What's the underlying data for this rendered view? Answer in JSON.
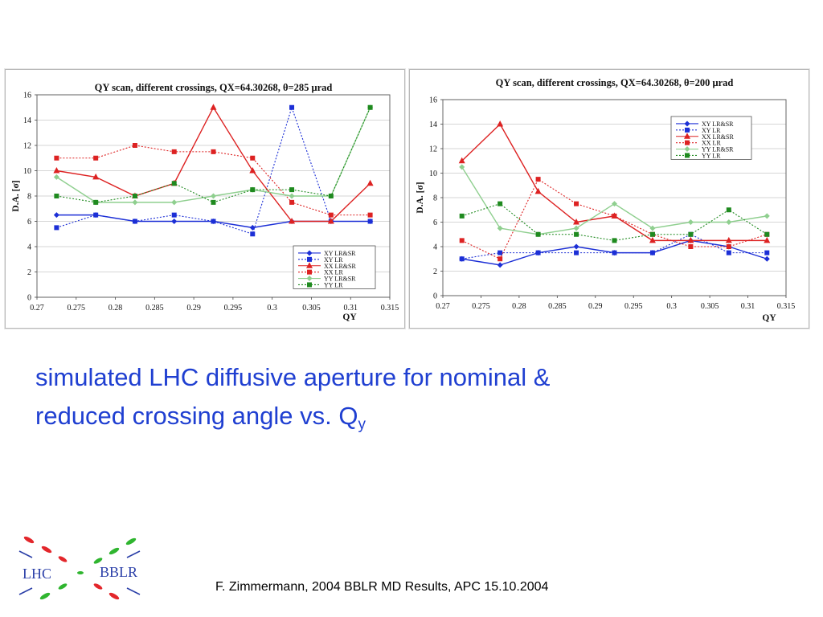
{
  "caption": {
    "line1": "simulated LHC diffusive aperture for nominal &",
    "line2_main": "reduced crossing angle vs. Q",
    "line2_sub": "y"
  },
  "footer": {
    "text": "F. Zimmermann, 2004 BBLR MD Results, APC 15.10.2004"
  },
  "logo": {
    "left_text": "LHC",
    "right_text": "BBLR",
    "colors": {
      "text": "#2b3fa8",
      "red": "#e3262b",
      "green": "#2fb52f",
      "blue": "#2b3fa8"
    }
  },
  "chart_data": [
    {
      "type": "line",
      "title": "QY scan, different crossings, QX=64.30268, θ=285 μrad",
      "xlabel": "QY",
      "ylabel": "D.A. [σ]",
      "xlim": [
        0.27,
        0.315
      ],
      "ylim": [
        0,
        16
      ],
      "xticks": [
        0.27,
        0.275,
        0.28,
        0.285,
        0.29,
        0.295,
        0.3,
        0.305,
        0.31,
        0.315
      ],
      "xtick_labels": [
        "0.27",
        "0.275",
        "0.28",
        "0.285",
        "0.29",
        "0.295",
        "0.3",
        "0.305",
        "0.31",
        "0.315"
      ],
      "yticks": [
        0,
        2,
        4,
        6,
        8,
        10,
        12,
        14,
        16
      ],
      "grid": "horizontal",
      "legend_position": "bottom-right",
      "x": [
        0.2725,
        0.2775,
        0.2825,
        0.2875,
        0.2925,
        0.2975,
        0.3025,
        0.3075,
        0.3125
      ],
      "series": [
        {
          "name": "XY LR&SR",
          "color": "#1c2fd6",
          "marker": "diamond",
          "dashed": false,
          "values": [
            6.5,
            6.5,
            6,
            6,
            6,
            5.5,
            6,
            6,
            6
          ]
        },
        {
          "name": "XY LR",
          "color": "#1c2fd6",
          "marker": "square",
          "dashed": true,
          "values": [
            5.5,
            6.5,
            6,
            6.5,
            6,
            5,
            15,
            6,
            6
          ]
        },
        {
          "name": "XX LR&SR",
          "color": "#dd2222",
          "marker": "triangle",
          "dashed": false,
          "values": [
            10,
            9.5,
            8,
            9,
            15,
            10,
            6,
            6,
            9
          ]
        },
        {
          "name": "XX LR",
          "color": "#dd2222",
          "marker": "square",
          "dashed": true,
          "values": [
            11,
            11,
            12,
            11.5,
            11.5,
            11,
            7.5,
            6.5,
            6.5
          ]
        },
        {
          "name": "YY LR&SR",
          "color": "#8fcf8f",
          "marker": "diamond",
          "dashed": false,
          "values": [
            9.5,
            7.5,
            7.5,
            7.5,
            8,
            8.5,
            8,
            8,
            15
          ]
        },
        {
          "name": "YY LR",
          "color": "#1f8a1f",
          "marker": "square",
          "dashed": true,
          "values": [
            8,
            7.5,
            8,
            9,
            7.5,
            8.5,
            8.5,
            8,
            15
          ]
        }
      ]
    },
    {
      "type": "line",
      "title": "QY scan, different crossings, QX=64.30268, θ=200 μrad",
      "xlabel": "QY",
      "ylabel": "D.A. [σ]",
      "xlim": [
        0.27,
        0.315
      ],
      "ylim": [
        0,
        16
      ],
      "xticks": [
        0.27,
        0.275,
        0.28,
        0.285,
        0.29,
        0.295,
        0.3,
        0.305,
        0.31,
        0.315
      ],
      "xtick_labels": [
        "0.27",
        "0.275",
        "0.28",
        "0.285",
        "0.29",
        "0.295",
        "0.3",
        "0.305",
        "0.31",
        "0.315"
      ],
      "yticks": [
        0,
        2,
        4,
        6,
        8,
        10,
        12,
        14,
        16
      ],
      "grid": "horizontal",
      "legend_position": "top-right",
      "x": [
        0.2725,
        0.2775,
        0.2825,
        0.2875,
        0.2925,
        0.2975,
        0.3025,
        0.3075,
        0.3125
      ],
      "series": [
        {
          "name": "XY LR&SR",
          "color": "#1c2fd6",
          "marker": "diamond",
          "dashed": false,
          "values": [
            3,
            2.5,
            3.5,
            4,
            3.5,
            3.5,
            4.5,
            4,
            3
          ]
        },
        {
          "name": "XY LR",
          "color": "#1c2fd6",
          "marker": "square",
          "dashed": true,
          "values": [
            3,
            3.5,
            3.5,
            3.5,
            3.5,
            3.5,
            5,
            3.5,
            3.5
          ]
        },
        {
          "name": "XX LR&SR",
          "color": "#dd2222",
          "marker": "triangle",
          "dashed": false,
          "values": [
            11,
            14,
            8.5,
            6,
            6.5,
            4.5,
            4.5,
            4.5,
            4.5
          ]
        },
        {
          "name": "XX LR",
          "color": "#dd2222",
          "marker": "square",
          "dashed": true,
          "values": [
            4.5,
            3,
            9.5,
            7.5,
            6.5,
            5,
            4,
            4,
            5
          ]
        },
        {
          "name": "YY LR&SR",
          "color": "#8fcf8f",
          "marker": "diamond",
          "dashed": false,
          "values": [
            10.5,
            5.5,
            5,
            5.5,
            7.5,
            5.5,
            6,
            6,
            6.5
          ]
        },
        {
          "name": "YY LR",
          "color": "#1f8a1f",
          "marker": "square",
          "dashed": true,
          "values": [
            6.5,
            7.5,
            5,
            5,
            4.5,
            5,
            5,
            7,
            5
          ]
        }
      ]
    }
  ]
}
